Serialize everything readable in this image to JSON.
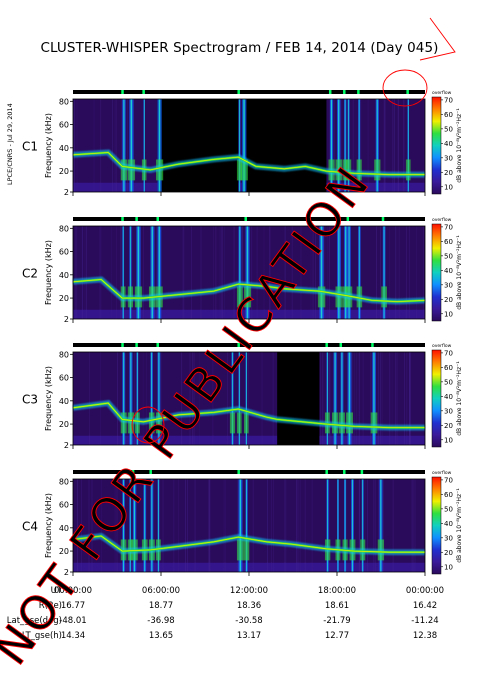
{
  "page": {
    "title": "CLUSTER-WHISPER Spectrogram / FEB 14, 2014 (Day 045)",
    "side_label": "LPCE/CNRS - Jul 29, 2014",
    "watermark": "NOT FOR PUBLICATION"
  },
  "colors": {
    "background": "#ffffff",
    "spectrogram_base": "#2a0a5a",
    "c3_label": "#1fbf3f",
    "watermark": "#ff0000",
    "status_bar": "#000000",
    "status_bar_highlight": "#00ff66"
  },
  "chart_data": {
    "type": "heatmap",
    "title": "CLUSTER-WHISPER Spectrogram / FEB 14, 2014 (Day 045)",
    "x_unit": "UT",
    "x_ticks": [
      "00:00:00",
      "06:00:00",
      "12:00:00",
      "18:00:00",
      "00:00:00"
    ],
    "ylabel": "Frequency (kHz)",
    "y_ticks": [
      "2",
      "20",
      "40",
      "60",
      "80"
    ],
    "ylim": [
      2,
      82
    ],
    "colorbar": {
      "label_top": "overflow",
      "unit": "dB above 10⁻⁸V²m⁻²Hz⁻¹",
      "ticks": [
        "10",
        "20",
        "30",
        "40",
        "50",
        "60",
        "70"
      ],
      "range": [
        5,
        72
      ],
      "colors": [
        "#2a0a5a",
        "#3a1a9a",
        "#2030d0",
        "#1090ff",
        "#10d0c0",
        "#30e040",
        "#f0f000",
        "#ff8000",
        "#ff1000"
      ]
    },
    "panels": [
      {
        "name": "C1",
        "blackout": [
          [
            0.24,
            0.47
          ],
          [
            0.48,
            0.72
          ]
        ],
        "bursts": [
          0.14,
          0.16,
          0.2,
          0.24,
          0.47,
          0.48,
          0.73,
          0.75,
          0.77,
          0.78,
          0.81,
          0.86,
          0.95
        ],
        "trace": [
          [
            0,
            34
          ],
          [
            0.1,
            36
          ],
          [
            0.14,
            24
          ],
          [
            0.22,
            21
          ],
          [
            0.3,
            26
          ],
          [
            0.4,
            30
          ],
          [
            0.47,
            32
          ],
          [
            0.52,
            24
          ],
          [
            0.6,
            22
          ],
          [
            0.66,
            24
          ],
          [
            0.72,
            20
          ],
          [
            0.8,
            18
          ],
          [
            0.9,
            17
          ],
          [
            1.0,
            17
          ]
        ]
      },
      {
        "name": "C2",
        "blackout": [],
        "bursts": [
          0.14,
          0.16,
          0.18,
          0.22,
          0.24,
          0.47,
          0.49,
          0.7,
          0.75,
          0.77,
          0.78,
          0.81,
          0.88
        ],
        "trace": [
          [
            0,
            34
          ],
          [
            0.08,
            36
          ],
          [
            0.14,
            20
          ],
          [
            0.2,
            20
          ],
          [
            0.3,
            23
          ],
          [
            0.4,
            26
          ],
          [
            0.47,
            32
          ],
          [
            0.55,
            30
          ],
          [
            0.6,
            28
          ],
          [
            0.7,
            26
          ],
          [
            0.78,
            22
          ],
          [
            0.85,
            18
          ],
          [
            0.92,
            17
          ],
          [
            1.0,
            18
          ]
        ]
      },
      {
        "name": "C3",
        "blackout": [
          [
            0.58,
            0.7
          ]
        ],
        "bursts": [
          0.14,
          0.16,
          0.18,
          0.22,
          0.24,
          0.45,
          0.47,
          0.49,
          0.72,
          0.74,
          0.76,
          0.78,
          0.85
        ],
        "trace": [
          [
            0,
            34
          ],
          [
            0.1,
            38
          ],
          [
            0.14,
            24
          ],
          [
            0.2,
            22
          ],
          [
            0.3,
            28
          ],
          [
            0.4,
            30
          ],
          [
            0.47,
            33
          ],
          [
            0.55,
            26
          ],
          [
            0.58,
            24
          ],
          [
            0.72,
            20
          ],
          [
            0.8,
            18
          ],
          [
            0.9,
            17
          ],
          [
            1.0,
            17
          ]
        ]
      },
      {
        "name": "C4",
        "blackout": [],
        "bursts": [
          0.14,
          0.16,
          0.17,
          0.2,
          0.22,
          0.24,
          0.47,
          0.49,
          0.72,
          0.75,
          0.77,
          0.79,
          0.82,
          0.87
        ],
        "trace": [
          [
            0,
            30
          ],
          [
            0.08,
            33
          ],
          [
            0.14,
            20
          ],
          [
            0.22,
            21
          ],
          [
            0.3,
            24
          ],
          [
            0.4,
            28
          ],
          [
            0.47,
            32
          ],
          [
            0.55,
            28
          ],
          [
            0.62,
            26
          ],
          [
            0.72,
            22
          ],
          [
            0.8,
            20
          ],
          [
            0.9,
            19
          ],
          [
            1.0,
            19
          ]
        ]
      }
    ],
    "ephemeris": [
      {
        "label": "UT",
        "values": [
          "00:00:00",
          "06:00:00",
          "12:00:00",
          "18:00:00",
          "00:00:00"
        ]
      },
      {
        "label": "R(Re)",
        "values": [
          "16.77",
          "18.77",
          "18.36",
          "18.61",
          "16.42"
        ]
      },
      {
        "label": "Lat_gse(deg)",
        "values": [
          "-48.01",
          "-36.98",
          "-30.58",
          "-21.79",
          "-11.24"
        ]
      },
      {
        "label": "LT_gse(h)",
        "values": [
          "14.34",
          "13.65",
          "13.17",
          "12.77",
          "12.38"
        ]
      }
    ]
  }
}
